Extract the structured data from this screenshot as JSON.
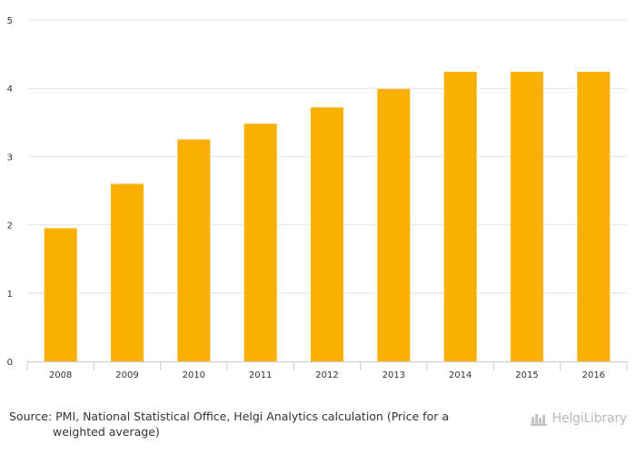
{
  "chart_data": {
    "type": "bar",
    "categories": [
      "2008",
      "2009",
      "2010",
      "2011",
      "2012",
      "2013",
      "2014",
      "2015",
      "2016"
    ],
    "values": [
      1.95,
      2.6,
      3.25,
      3.48,
      3.72,
      3.99,
      4.24,
      4.24,
      4.24
    ],
    "title": "",
    "xlabel": "",
    "ylabel": "",
    "ylim": [
      0,
      5
    ],
    "yticks": [
      "0",
      "1",
      "2",
      "3",
      "4",
      "5"
    ],
    "grid": true,
    "bar_color": "#f9b000",
    "grid_color": "#e6e6e6"
  },
  "footer": {
    "source_line1": "Source: PMI, National Statistical Office, Helgi Analytics calculation (Price for a",
    "source_line2": "weighted average)",
    "brand_text": "HelgiLibrary"
  }
}
